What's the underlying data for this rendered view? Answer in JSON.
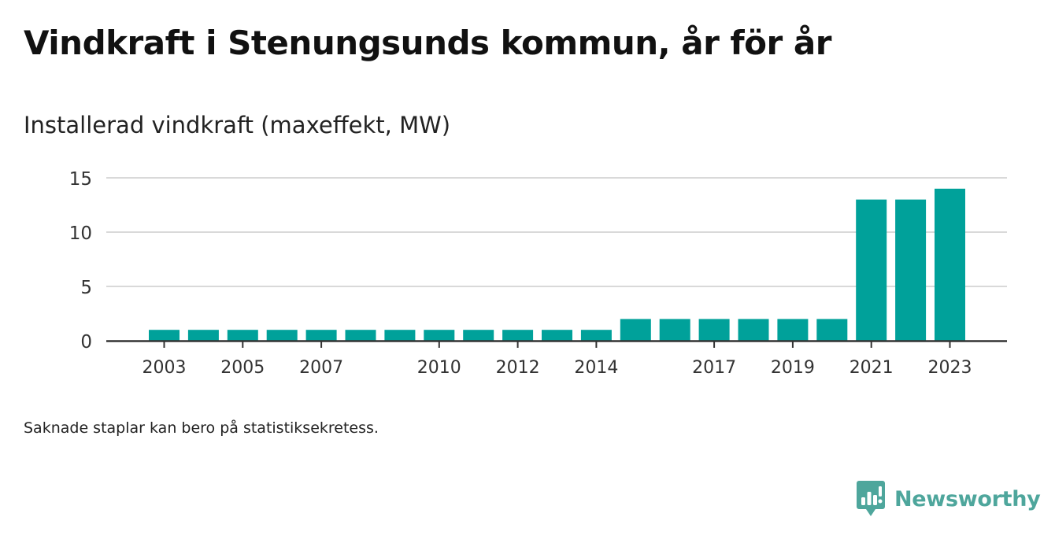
{
  "title": "Vindkraft i Stenungsunds kommun, år för år",
  "subtitle": "Installerad vindkraft (maxeffekt, MW)",
  "footnote": "Saknade staplar kan bero på statistiksekretess.",
  "brand": {
    "name": "Newsworthy",
    "color": "#4ea69c"
  },
  "chart_data": {
    "type": "bar",
    "title": "Vindkraft i Stenungsunds kommun, år för år",
    "ylabel": "Installerad vindkraft (maxeffekt, MW)",
    "xlabel": "",
    "categories": [
      "2003",
      "2004",
      "2005",
      "2006",
      "2007",
      "2008",
      "2009",
      "2010",
      "2011",
      "2012",
      "2013",
      "2014",
      "2015",
      "2016",
      "2017",
      "2018",
      "2019",
      "2020",
      "2021",
      "2022",
      "2023"
    ],
    "values": [
      1,
      1,
      1,
      1,
      1,
      1,
      1,
      1,
      1,
      1,
      1,
      1,
      2,
      2,
      2,
      2,
      2,
      2,
      13,
      13,
      14
    ],
    "x_tick_labels": [
      "2003",
      "2005",
      "2007",
      "2010",
      "2012",
      "2014",
      "2017",
      "2019",
      "2021",
      "2023"
    ],
    "y_ticks": [
      0,
      5,
      10,
      15
    ],
    "ylim": [
      0,
      15
    ],
    "grid": true,
    "bar_color": "#00a19a",
    "grid_color": "#d9d9d9",
    "axis_color": "#333333"
  }
}
